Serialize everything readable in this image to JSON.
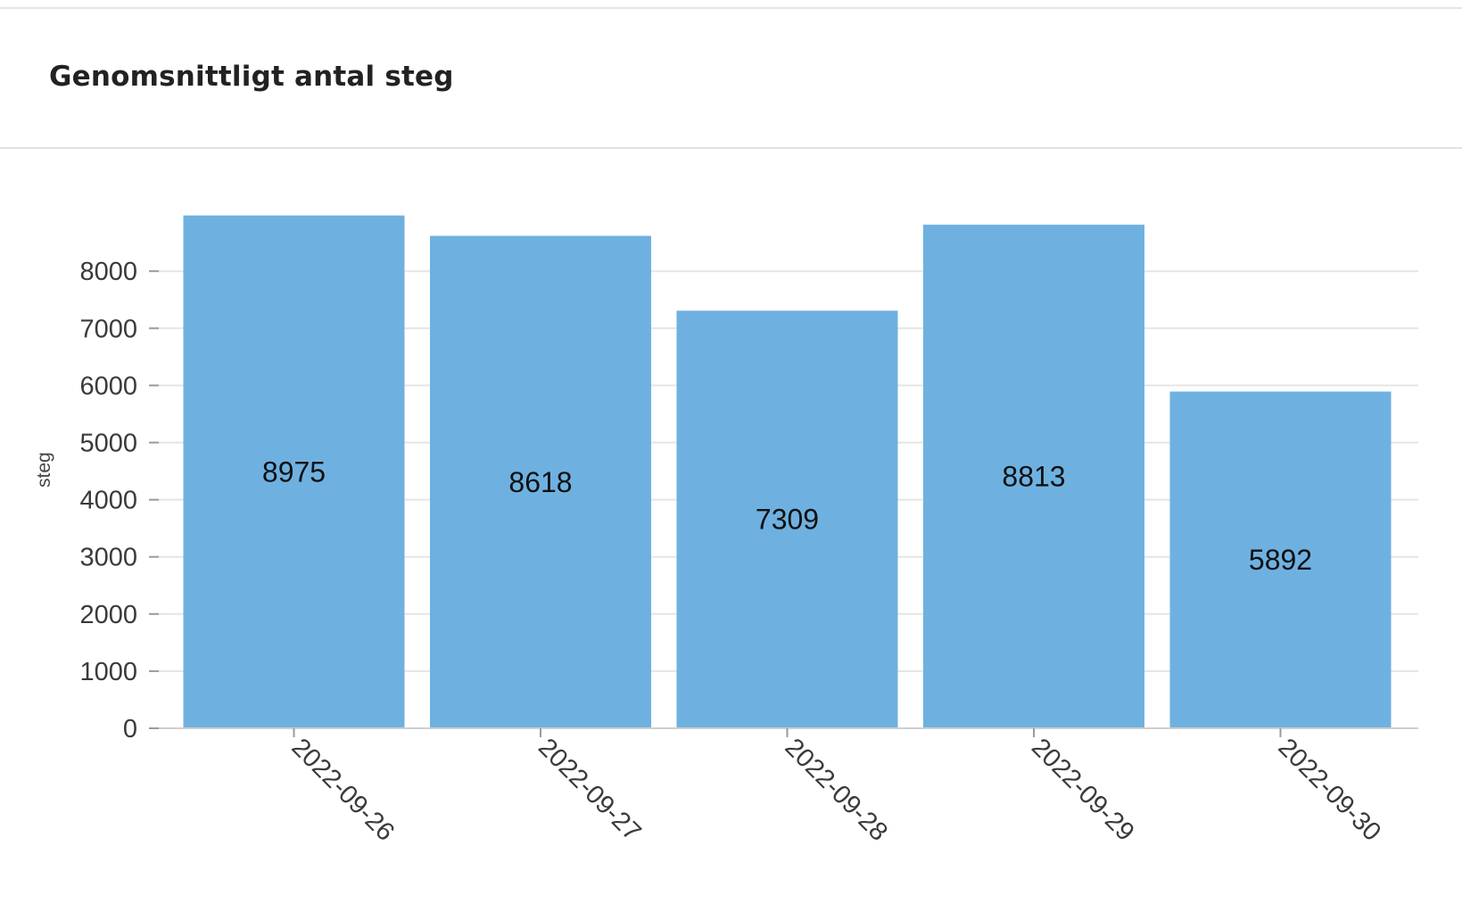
{
  "card": {
    "title": "Genomsnittligt antal steg"
  },
  "colors": {
    "bar": "#6eb1e1",
    "grid": "#e5e5e5",
    "axis": "#cfcfcf",
    "tick": "#9a9a9a"
  },
  "chart_data": {
    "type": "bar",
    "title": "Genomsnittligt antal steg",
    "xlabel": "",
    "ylabel": "steg",
    "categories": [
      "2022-09-26",
      "2022-09-27",
      "2022-09-28",
      "2022-09-29",
      "2022-09-30"
    ],
    "values": [
      8975,
      8618,
      7309,
      8813,
      5892
    ],
    "ylim": [
      0,
      9000
    ],
    "yticks": [
      0,
      1000,
      2000,
      3000,
      4000,
      5000,
      6000,
      7000,
      8000
    ],
    "grid": true,
    "data_labels": true,
    "legend": "none"
  }
}
